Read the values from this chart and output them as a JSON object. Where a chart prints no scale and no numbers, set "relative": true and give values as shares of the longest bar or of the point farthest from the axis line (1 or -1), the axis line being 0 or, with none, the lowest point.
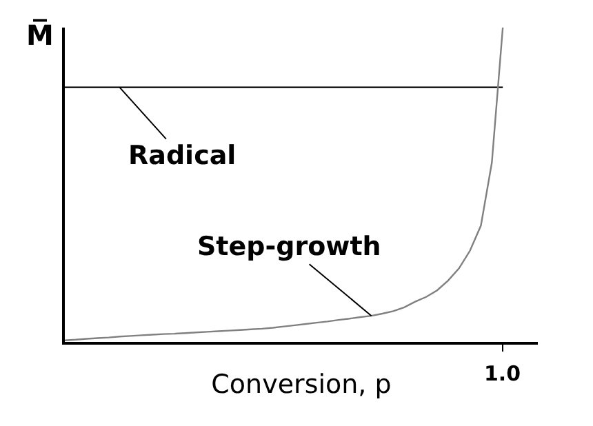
{
  "chart_data": {
    "type": "line",
    "relative": true,
    "xlabel": "Conversion, p",
    "ylabel": "M̅",
    "categories": [
      null,
      null,
      null,
      null,
      null,
      null,
      null,
      null,
      null,
      null,
      null,
      null,
      null,
      null,
      null,
      null,
      null,
      null,
      null,
      null,
      null,
      null,
      null,
      null,
      null,
      null,
      null,
      null,
      null,
      null,
      null,
      null,
      null,
      null,
      null,
      null,
      null,
      null,
      null,
      null,
      null
    ],
    "annotations": [
      "1.0"
    ],
    "tick_labels": "x",
    "series": [
      {
        "name": "Radical",
        "color": "#000000",
        "values": [
          0.81,
          0.81,
          0.81,
          0.81,
          0.81,
          0.81,
          0.81,
          0.81,
          0.81,
          0.81,
          0.81,
          0.81,
          0.81,
          0.81,
          0.81,
          0.81,
          0.81,
          0.81,
          0.81,
          0.81,
          0.81,
          0.81,
          0.81,
          0.81,
          0.81,
          0.81,
          0.81,
          0.81,
          0.81,
          0.81,
          0.81,
          0.81,
          0.81,
          0.81,
          0.81,
          0.81,
          0.81,
          0.81,
          0.81,
          0.81,
          0.81
        ]
      },
      {
        "name": "Step-growth",
        "color": "#808080",
        "values": [
          0.005,
          0.007,
          0.01,
          0.012,
          0.014,
          0.017,
          0.019,
          0.021,
          0.023,
          0.025,
          0.026,
          0.028,
          0.03,
          0.032,
          0.034,
          0.036,
          0.038,
          0.04,
          0.042,
          0.045,
          0.049,
          0.053,
          0.057,
          0.061,
          0.065,
          0.07,
          0.074,
          0.079,
          0.083,
          0.09,
          0.098,
          0.11,
          0.128,
          0.143,
          0.164,
          0.195,
          0.234,
          0.29,
          0.37,
          0.57,
          1.0
        ]
      }
    ]
  }
}
